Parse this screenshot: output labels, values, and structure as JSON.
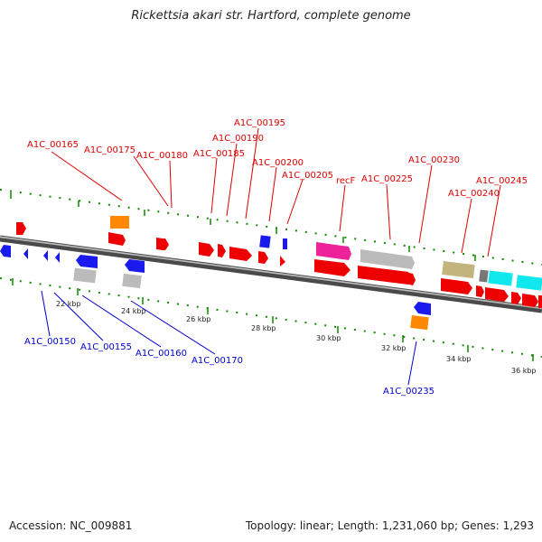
{
  "title": "Rickettsia akari str. Hartford, complete genome",
  "footer": {
    "accession": "Accession: NC_009881",
    "stats": "Topology: linear; Length: 1,231,060 bp; Genes: 1,293"
  },
  "colors": {
    "forward_gene": "#ee0000",
    "reverse_gene": "#1a1aee",
    "trna_like": "#ff8800",
    "cds_unknown": "#bbbbbb",
    "magenta": "#ee2299",
    "cyan": "#11e8ee",
    "olive": "#c2b47c",
    "dark_grey": "#777777",
    "label_top": "#dd0000",
    "label_bottom": "#0000cc",
    "tick": "#118800"
  },
  "kbp_labels": [
    "22 kbp",
    "24 kbp",
    "26 kbp",
    "28 kbp",
    "30 kbp",
    "32 kbp",
    "34 kbp",
    "36 kbp"
  ],
  "labels_top": [
    "A1C_00165",
    "A1C_00175",
    "A1C_00180",
    "A1C_00185",
    "A1C_00190",
    "A1C_00195",
    "A1C_00200",
    "A1C_00205",
    "recF",
    "A1C_00225",
    "A1C_00230",
    "A1C_00240",
    "A1C_00245"
  ],
  "labels_bottom": [
    "A1C_00150",
    "A1C_00155",
    "A1C_00160",
    "A1C_00170",
    "A1C_00235"
  ]
}
